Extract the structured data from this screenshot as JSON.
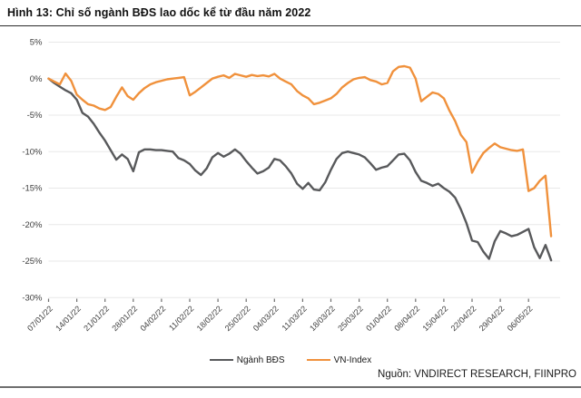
{
  "header": {
    "title": "Hình 13: Chỉ số ngành BĐS lao dốc kể từ đầu năm 2022"
  },
  "footer": {
    "source": "Nguồn: VNDIRECT RESEARCH, FIINPRO"
  },
  "colors": {
    "bds_line": "#58595b",
    "vnindex_line": "#f0913c",
    "grid": "#e8e8e8",
    "axis_text": "#3d3d3d",
    "tick": "#6e6e6e"
  },
  "chart_data": {
    "type": "line",
    "title": "Hình 13: Chỉ số ngành BĐS lao dốc kể từ đầu năm 2022",
    "unit": "%",
    "grid": "horizontal",
    "legend_position": "bottom",
    "ylim": [
      -30,
      5
    ],
    "yticks": [
      5,
      0,
      -5,
      -10,
      -15,
      -20,
      -25,
      -30
    ],
    "ytick_labels": [
      "5%",
      "0%",
      "-5%",
      "-10%",
      "-15%",
      "-20%",
      "-25%",
      "-30%"
    ],
    "x_tick_labels": [
      "07/01/22",
      "14/01/22",
      "21/01/22",
      "28/01/22",
      "04/02/22",
      "11/02/22",
      "18/02/22",
      "25/02/22",
      "04/03/22",
      "11/03/22",
      "18/03/22",
      "25/03/22",
      "01/04/22",
      "08/04/22",
      "15/04/22",
      "22/04/22",
      "29/04/22",
      "06/05/22"
    ],
    "points_per_tick": 5,
    "series": [
      {
        "name": "Ngành BĐS",
        "color": "#58595b",
        "values": [
          0.0,
          -0.6,
          -1.1,
          -1.6,
          -2.0,
          -2.9,
          -4.7,
          -5.2,
          -6.2,
          -7.4,
          -8.5,
          -9.8,
          -11.1,
          -10.4,
          -11.0,
          -12.7,
          -10.1,
          -9.7,
          -9.7,
          -9.8,
          -9.8,
          -9.9,
          -10.0,
          -10.9,
          -11.2,
          -11.7,
          -12.6,
          -13.2,
          -12.3,
          -10.8,
          -10.2,
          -10.7,
          -10.3,
          -9.7,
          -10.3,
          -11.3,
          -12.2,
          -13.0,
          -12.7,
          -12.2,
          -11.0,
          -11.2,
          -12.0,
          -13.0,
          -14.4,
          -15.1,
          -14.3,
          -15.2,
          -15.3,
          -14.2,
          -12.5,
          -11.0,
          -10.2,
          -10.0,
          -10.2,
          -10.4,
          -10.8,
          -11.6,
          -12.5,
          -12.2,
          -12.0,
          -11.2,
          -10.4,
          -10.3,
          -11.2,
          -12.8,
          -14.0,
          -14.3,
          -14.7,
          -14.4,
          -15.0,
          -15.5,
          -16.3,
          -17.9,
          -19.8,
          -22.2,
          -22.4,
          -23.7,
          -24.7,
          -22.3,
          -20.9,
          -21.2,
          -21.6,
          -21.4,
          -21.0,
          -20.6,
          -23.1,
          -24.6,
          -22.8,
          -24.9
        ]
      },
      {
        "name": "VN-Index",
        "color": "#f0913c",
        "values": [
          0.0,
          -0.4,
          -0.8,
          0.7,
          -0.3,
          -2.2,
          -2.9,
          -3.5,
          -3.7,
          -4.1,
          -4.3,
          -3.9,
          -2.5,
          -1.2,
          -2.4,
          -2.9,
          -2.0,
          -1.3,
          -0.8,
          -0.5,
          -0.3,
          -0.1,
          0.0,
          0.1,
          0.2,
          -2.3,
          -1.8,
          -1.2,
          -0.6,
          0.0,
          0.25,
          0.45,
          0.1,
          0.65,
          0.45,
          0.25,
          0.5,
          0.35,
          0.45,
          0.3,
          0.65,
          0.0,
          -0.4,
          -0.8,
          -1.7,
          -2.3,
          -2.7,
          -3.5,
          -3.3,
          -3.0,
          -2.7,
          -2.1,
          -1.2,
          -0.6,
          -0.1,
          0.1,
          0.2,
          -0.2,
          -0.4,
          -0.8,
          -0.6,
          1.0,
          1.6,
          1.7,
          1.5,
          0.0,
          -3.1,
          -2.5,
          -1.9,
          -2.1,
          -2.7,
          -4.4,
          -5.8,
          -7.7,
          -8.7,
          -12.9,
          -11.4,
          -10.2,
          -9.5,
          -8.9,
          -9.4,
          -9.6,
          -9.8,
          -9.9,
          -9.7,
          -15.4,
          -15.0,
          -14.0,
          -13.3,
          -21.6
        ]
      }
    ]
  }
}
